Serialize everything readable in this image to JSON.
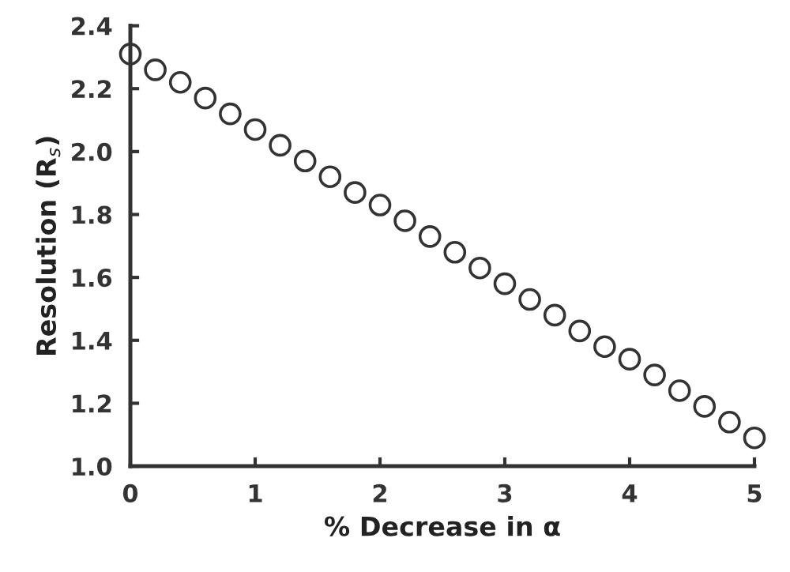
{
  "chart_data": {
    "type": "scatter",
    "xlabel": "% Decrease in α",
    "ylabel": "Resolution (R$_{s}$)",
    "x": [
      0,
      0.2,
      0.4,
      0.6,
      0.8,
      1,
      1.2,
      1.4,
      1.6,
      1.8,
      2,
      2.2,
      2.4,
      2.6,
      2.8,
      3,
      3.2,
      3.4,
      3.6,
      3.8,
      4,
      4.2,
      4.4,
      4.6,
      4.8,
      5
    ],
    "series": [
      {
        "color": "#333333",
        "values": [
          2.31,
          2.26,
          2.22,
          2.17,
          2.12,
          2.07,
          2.02,
          1.97,
          1.92,
          1.87,
          1.83,
          1.78,
          1.73,
          1.68,
          1.63,
          1.58,
          1.53,
          1.48,
          1.43,
          1.38,
          1.34,
          1.29,
          1.24,
          1.19,
          1.14,
          1.09
        ]
      }
    ],
    "xlim": [
      0,
      5
    ],
    "ylim": [
      1.0,
      2.4
    ],
    "xticks": [
      0,
      1,
      2,
      3,
      4,
      5
    ],
    "yticks": [
      {
        "value": 1.0,
        "label": "1.0"
      },
      {
        "value": 1.2,
        "label": "1.2"
      },
      {
        "value": 1.4,
        "label": "1.4"
      },
      {
        "value": 1.6,
        "label": "1.6"
      },
      {
        "value": 1.8,
        "label": "1.8"
      },
      {
        "value": 2.0,
        "label": "2.0"
      },
      {
        "value": 2.2,
        "label": "2.2"
      },
      {
        "value": 2.4,
        "label": "2.4"
      }
    ],
    "marker": "circle",
    "grid": false
  }
}
